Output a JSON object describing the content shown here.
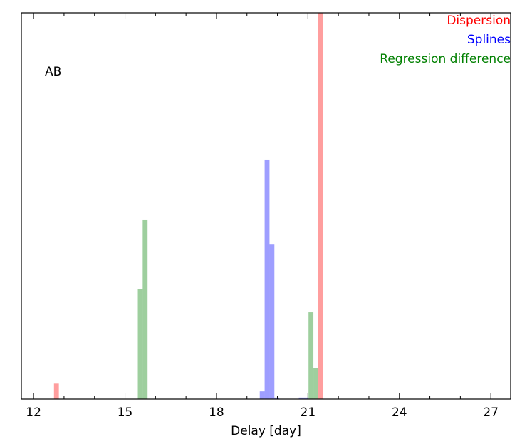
{
  "chart_data": {
    "type": "bar",
    "panel_label": "AB",
    "xlabel": "Delay [day]",
    "ylabel": "",
    "xlim": [
      11.6,
      27.65
    ],
    "ylim": [
      0,
      1.0
    ],
    "xticks": [
      12,
      15,
      18,
      21,
      24,
      27
    ],
    "xtick_labels": [
      "12",
      "15",
      "18",
      "21",
      "24",
      "27"
    ],
    "yticks_visible": false,
    "grid": false,
    "legend_position": "top-right",
    "bin_width": 0.16,
    "series": [
      {
        "name": "Dispersion",
        "color": "#ff0000",
        "bars": [
          {
            "x": 12.75,
            "value": 0.04
          },
          {
            "x": 21.42,
            "value": 1.0
          }
        ]
      },
      {
        "name": "Splines",
        "color": "#0000ff",
        "bars": [
          {
            "x": 19.5,
            "value": 0.02
          },
          {
            "x": 19.66,
            "value": 0.62
          },
          {
            "x": 19.82,
            "value": 0.4
          },
          {
            "x": 19.98,
            "value": 0.004
          },
          {
            "x": 20.78,
            "value": 0.004
          },
          {
            "x": 20.94,
            "value": 0.004
          }
        ]
      },
      {
        "name": "Regression difference",
        "color": "#008000",
        "bars": [
          {
            "x": 15.5,
            "value": 0.285
          },
          {
            "x": 15.66,
            "value": 0.465
          },
          {
            "x": 21.1,
            "value": 0.225
          },
          {
            "x": 21.26,
            "value": 0.08
          }
        ]
      }
    ]
  }
}
